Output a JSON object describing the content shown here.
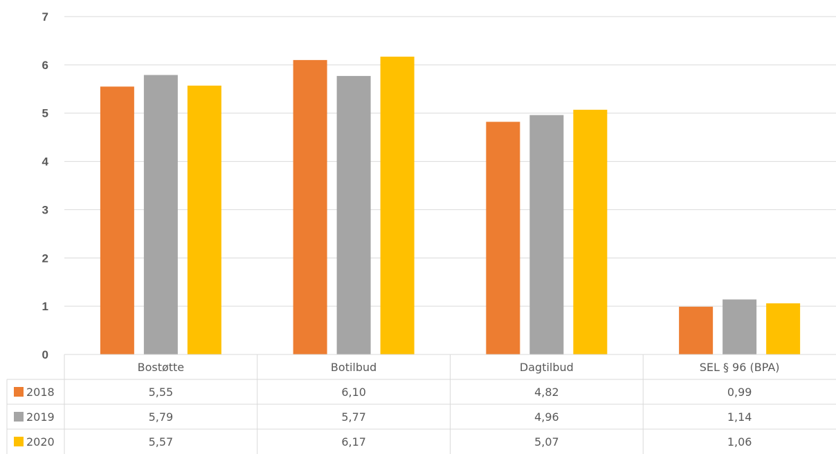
{
  "chart_data": {
    "type": "bar",
    "categories": [
      "Bostøtte",
      "Botilbud",
      "Dagtilbud",
      "SEL § 96 (BPA)"
    ],
    "series": [
      {
        "name": "2018",
        "color": "#ED7D31",
        "values": [
          5.55,
          6.1,
          4.82,
          0.99
        ],
        "labels": [
          "5,55",
          "6,10",
          "4,82",
          "0,99"
        ]
      },
      {
        "name": "2019",
        "color": "#A5A5A5",
        "values": [
          5.79,
          5.77,
          4.96,
          1.14
        ],
        "labels": [
          "5,79",
          "5,77",
          "4,96",
          "1,14"
        ]
      },
      {
        "name": "2020",
        "color": "#FFC000",
        "values": [
          5.57,
          6.17,
          5.07,
          1.06
        ],
        "labels": [
          "5,57",
          "6,17",
          "5,07",
          "1,06"
        ]
      }
    ],
    "ylim": [
      0,
      7
    ],
    "yticks": [
      "0",
      "1",
      "2",
      "3",
      "4",
      "5",
      "6",
      "7"
    ],
    "grid": true,
    "legend": "data-table",
    "title": "",
    "xlabel": "",
    "ylabel": ""
  }
}
